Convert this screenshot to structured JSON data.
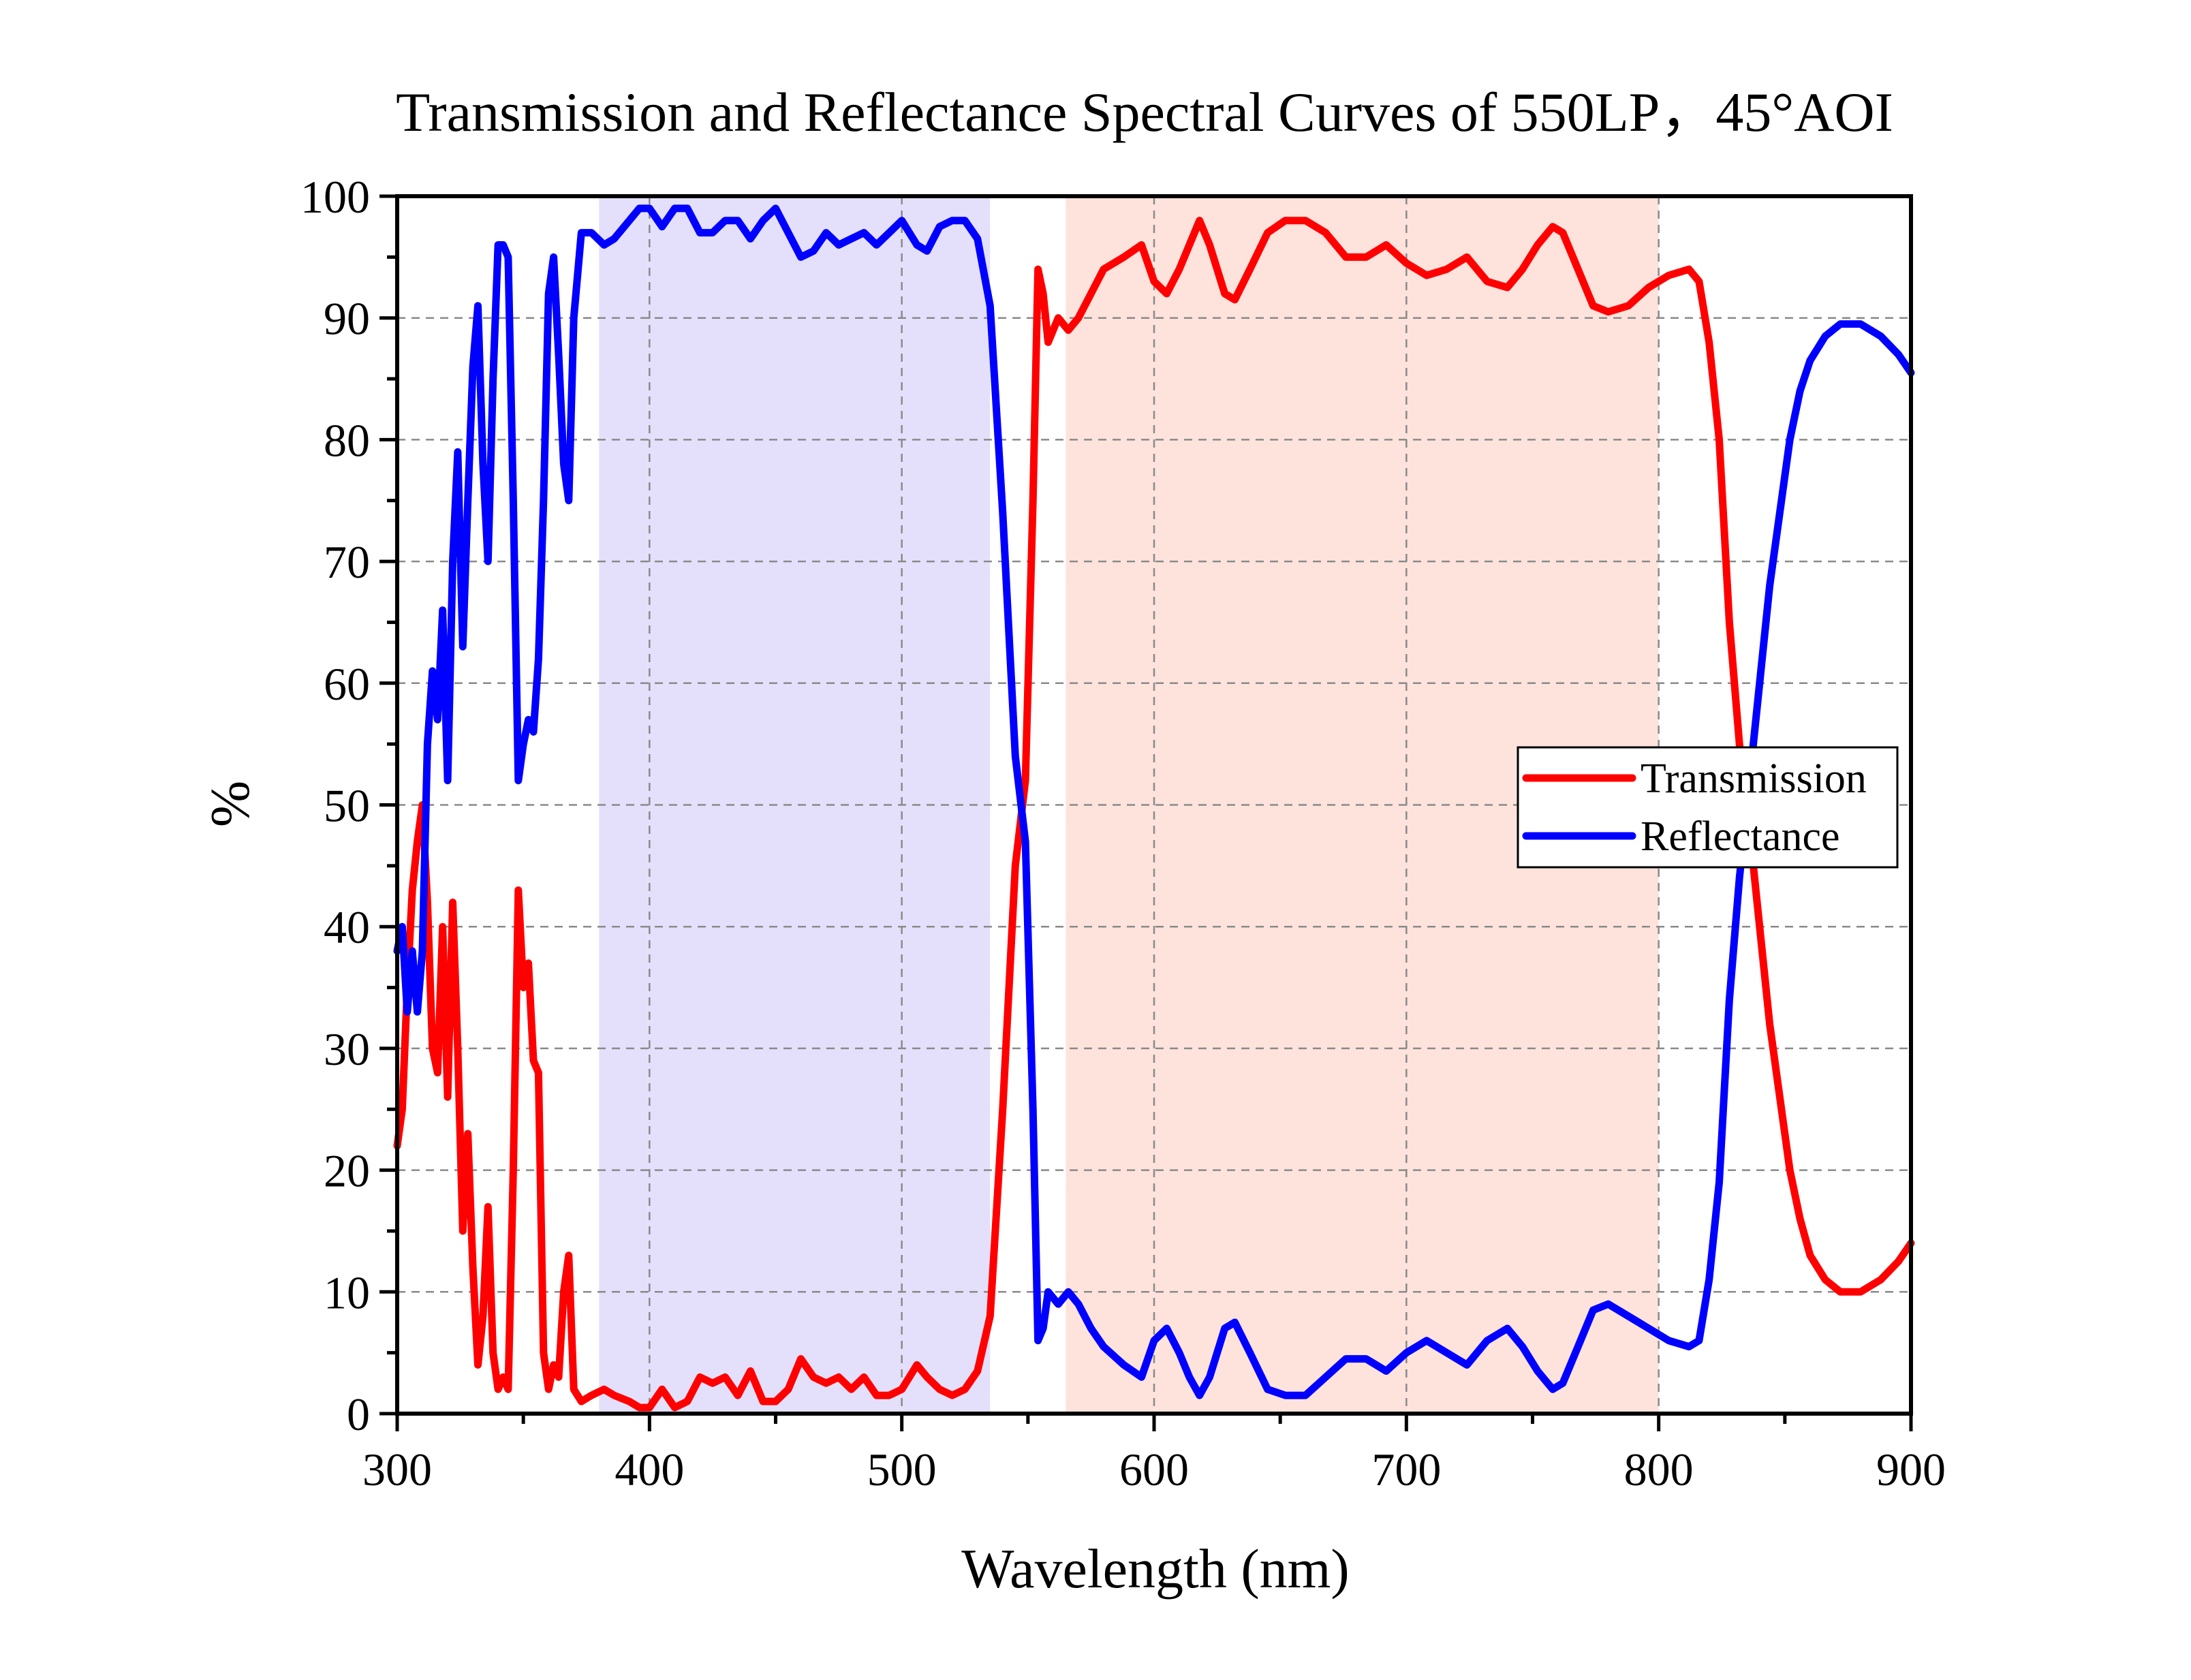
{
  "chart_data": {
    "type": "line",
    "title": "Transmission and Reflectance Spectral Curves of 550LP，45°AOI",
    "xlabel": "Wavelength (nm)",
    "ylabel": "%",
    "xlim": [
      300,
      900
    ],
    "ylim": [
      0,
      100
    ],
    "x_ticks": [
      300,
      400,
      500,
      600,
      700,
      800,
      900
    ],
    "y_ticks": [
      0,
      10,
      20,
      30,
      40,
      50,
      60,
      70,
      80,
      90,
      100
    ],
    "grid": true,
    "legend_position": "right",
    "shaded_regions": [
      {
        "x_start": 380,
        "x_end": 535,
        "color": "#e4e0fb"
      },
      {
        "x_start": 565,
        "x_end": 800,
        "color": "#fde3dc"
      }
    ],
    "series": [
      {
        "name": "Transmission",
        "color": "#ff0000",
        "points": [
          [
            300,
            22
          ],
          [
            302,
            25
          ],
          [
            304,
            35
          ],
          [
            306,
            43
          ],
          [
            308,
            47
          ],
          [
            310,
            50
          ],
          [
            312,
            42
          ],
          [
            314,
            30
          ],
          [
            316,
            28
          ],
          [
            318,
            40
          ],
          [
            320,
            26
          ],
          [
            322,
            42
          ],
          [
            324,
            30
          ],
          [
            326,
            15
          ],
          [
            328,
            23
          ],
          [
            330,
            12
          ],
          [
            332,
            4
          ],
          [
            334,
            8
          ],
          [
            336,
            17
          ],
          [
            338,
            5
          ],
          [
            340,
            2
          ],
          [
            342,
            3
          ],
          [
            344,
            2
          ],
          [
            346,
            20
          ],
          [
            348,
            43
          ],
          [
            350,
            35
          ],
          [
            352,
            37
          ],
          [
            354,
            29
          ],
          [
            356,
            28
          ],
          [
            358,
            5
          ],
          [
            360,
            2
          ],
          [
            362,
            4
          ],
          [
            364,
            3
          ],
          [
            366,
            10
          ],
          [
            368,
            13
          ],
          [
            370,
            2
          ],
          [
            373,
            1
          ],
          [
            377,
            1.5
          ],
          [
            382,
            2
          ],
          [
            386,
            1.5
          ],
          [
            392,
            1
          ],
          [
            396,
            0.5
          ],
          [
            400,
            0.5
          ],
          [
            405,
            2
          ],
          [
            410,
            0.5
          ],
          [
            415,
            1
          ],
          [
            420,
            3
          ],
          [
            425,
            2.5
          ],
          [
            430,
            3
          ],
          [
            435,
            1.5
          ],
          [
            440,
            3.5
          ],
          [
            445,
            1
          ],
          [
            450,
            1
          ],
          [
            455,
            2
          ],
          [
            460,
            4.5
          ],
          [
            465,
            3
          ],
          [
            470,
            2.5
          ],
          [
            475,
            3
          ],
          [
            480,
            2
          ],
          [
            485,
            3
          ],
          [
            490,
            1.5
          ],
          [
            495,
            1.5
          ],
          [
            500,
            2
          ],
          [
            506,
            4
          ],
          [
            510,
            3
          ],
          [
            515,
            2
          ],
          [
            520,
            1.5
          ],
          [
            525,
            2
          ],
          [
            530,
            3.5
          ],
          [
            535,
            8
          ],
          [
            540,
            25
          ],
          [
            545,
            45
          ],
          [
            549,
            52
          ],
          [
            552,
            75
          ],
          [
            554,
            94
          ],
          [
            556,
            92
          ],
          [
            558,
            88
          ],
          [
            562,
            90
          ],
          [
            566,
            89
          ],
          [
            570,
            90
          ],
          [
            575,
            92
          ],
          [
            580,
            94
          ],
          [
            588,
            95
          ],
          [
            595,
            96
          ],
          [
            600,
            93
          ],
          [
            605,
            92
          ],
          [
            610,
            94
          ],
          [
            614,
            96
          ],
          [
            618,
            98
          ],
          [
            622,
            96
          ],
          [
            628,
            92
          ],
          [
            632,
            91.5
          ],
          [
            638,
            94
          ],
          [
            645,
            97
          ],
          [
            652,
            98
          ],
          [
            660,
            98
          ],
          [
            668,
            97
          ],
          [
            676,
            95
          ],
          [
            684,
            95
          ],
          [
            692,
            96
          ],
          [
            700,
            94.5
          ],
          [
            708,
            93.5
          ],
          [
            716,
            94
          ],
          [
            724,
            95
          ],
          [
            732,
            93
          ],
          [
            740,
            92.5
          ],
          [
            746,
            94
          ],
          [
            752,
            96
          ],
          [
            758,
            97.5
          ],
          [
            762,
            97
          ],
          [
            768,
            94
          ],
          [
            774,
            91
          ],
          [
            780,
            90.5
          ],
          [
            788,
            91
          ],
          [
            796,
            92.5
          ],
          [
            804,
            93.5
          ],
          [
            812,
            94
          ],
          [
            816,
            93
          ],
          [
            820,
            88
          ],
          [
            824,
            80
          ],
          [
            828,
            65
          ],
          [
            832,
            55
          ],
          [
            836,
            48
          ],
          [
            840,
            40
          ],
          [
            844,
            32
          ],
          [
            848,
            26
          ],
          [
            852,
            20
          ],
          [
            856,
            16
          ],
          [
            860,
            13
          ],
          [
            866,
            11
          ],
          [
            872,
            10
          ],
          [
            880,
            10
          ],
          [
            888,
            11
          ],
          [
            895,
            12.5
          ],
          [
            900,
            14
          ]
        ]
      },
      {
        "name": "Reflectance",
        "color": "#0000ff",
        "points": [
          [
            300,
            38
          ],
          [
            302,
            40
          ],
          [
            304,
            33
          ],
          [
            306,
            38
          ],
          [
            308,
            33
          ],
          [
            310,
            38
          ],
          [
            312,
            55
          ],
          [
            314,
            61
          ],
          [
            316,
            57
          ],
          [
            318,
            66
          ],
          [
            320,
            52
          ],
          [
            322,
            70
          ],
          [
            324,
            79
          ],
          [
            326,
            63
          ],
          [
            328,
            75
          ],
          [
            330,
            86
          ],
          [
            332,
            91
          ],
          [
            334,
            78
          ],
          [
            336,
            70
          ],
          [
            338,
            85
          ],
          [
            340,
            96
          ],
          [
            342,
            96
          ],
          [
            344,
            95
          ],
          [
            346,
            75
          ],
          [
            348,
            52
          ],
          [
            350,
            55
          ],
          [
            352,
            57
          ],
          [
            354,
            56
          ],
          [
            356,
            62
          ],
          [
            358,
            75
          ],
          [
            360,
            92
          ],
          [
            362,
            95
          ],
          [
            364,
            87
          ],
          [
            366,
            78
          ],
          [
            368,
            75
          ],
          [
            370,
            90
          ],
          [
            373,
            97
          ],
          [
            377,
            97
          ],
          [
            382,
            96
          ],
          [
            386,
            96.5
          ],
          [
            392,
            98
          ],
          [
            396,
            99
          ],
          [
            400,
            99
          ],
          [
            405,
            97.5
          ],
          [
            410,
            99
          ],
          [
            415,
            99
          ],
          [
            420,
            97
          ],
          [
            425,
            97
          ],
          [
            430,
            98
          ],
          [
            435,
            98
          ],
          [
            440,
            96.5
          ],
          [
            445,
            98
          ],
          [
            450,
            99
          ],
          [
            455,
            97
          ],
          [
            460,
            95
          ],
          [
            465,
            95.5
          ],
          [
            470,
            97
          ],
          [
            475,
            96
          ],
          [
            480,
            96.5
          ],
          [
            485,
            97
          ],
          [
            490,
            96
          ],
          [
            495,
            97
          ],
          [
            500,
            98
          ],
          [
            506,
            96
          ],
          [
            510,
            95.5
          ],
          [
            515,
            97.5
          ],
          [
            520,
            98
          ],
          [
            525,
            98
          ],
          [
            530,
            96.5
          ],
          [
            535,
            91
          ],
          [
            540,
            74
          ],
          [
            545,
            54
          ],
          [
            549,
            47
          ],
          [
            552,
            25
          ],
          [
            554,
            6
          ],
          [
            556,
            7
          ],
          [
            558,
            10
          ],
          [
            562,
            9
          ],
          [
            566,
            10
          ],
          [
            570,
            9
          ],
          [
            575,
            7
          ],
          [
            580,
            5.5
          ],
          [
            588,
            4
          ],
          [
            595,
            3
          ],
          [
            600,
            6
          ],
          [
            605,
            7
          ],
          [
            610,
            5
          ],
          [
            614,
            3
          ],
          [
            618,
            1.5
          ],
          [
            622,
            3
          ],
          [
            628,
            7
          ],
          [
            632,
            7.5
          ],
          [
            638,
            5
          ],
          [
            645,
            2
          ],
          [
            652,
            1.5
          ],
          [
            660,
            1.5
          ],
          [
            668,
            3
          ],
          [
            676,
            4.5
          ],
          [
            684,
            4.5
          ],
          [
            692,
            3.5
          ],
          [
            700,
            5
          ],
          [
            708,
            6
          ],
          [
            716,
            5
          ],
          [
            724,
            4
          ],
          [
            732,
            6
          ],
          [
            740,
            7
          ],
          [
            746,
            5.5
          ],
          [
            752,
            3.5
          ],
          [
            758,
            2
          ],
          [
            762,
            2.5
          ],
          [
            768,
            5.5
          ],
          [
            774,
            8.5
          ],
          [
            780,
            9
          ],
          [
            788,
            8
          ],
          [
            796,
            7
          ],
          [
            804,
            6
          ],
          [
            812,
            5.5
          ],
          [
            816,
            6
          ],
          [
            820,
            11
          ],
          [
            824,
            19
          ],
          [
            828,
            34
          ],
          [
            832,
            44
          ],
          [
            836,
            52
          ],
          [
            840,
            60
          ],
          [
            844,
            68
          ],
          [
            848,
            74
          ],
          [
            852,
            80
          ],
          [
            856,
            84
          ],
          [
            860,
            86.5
          ],
          [
            866,
            88.5
          ],
          [
            872,
            89.5
          ],
          [
            880,
            89.5
          ],
          [
            888,
            88.5
          ],
          [
            895,
            87
          ],
          [
            900,
            85.5
          ]
        ]
      }
    ]
  }
}
